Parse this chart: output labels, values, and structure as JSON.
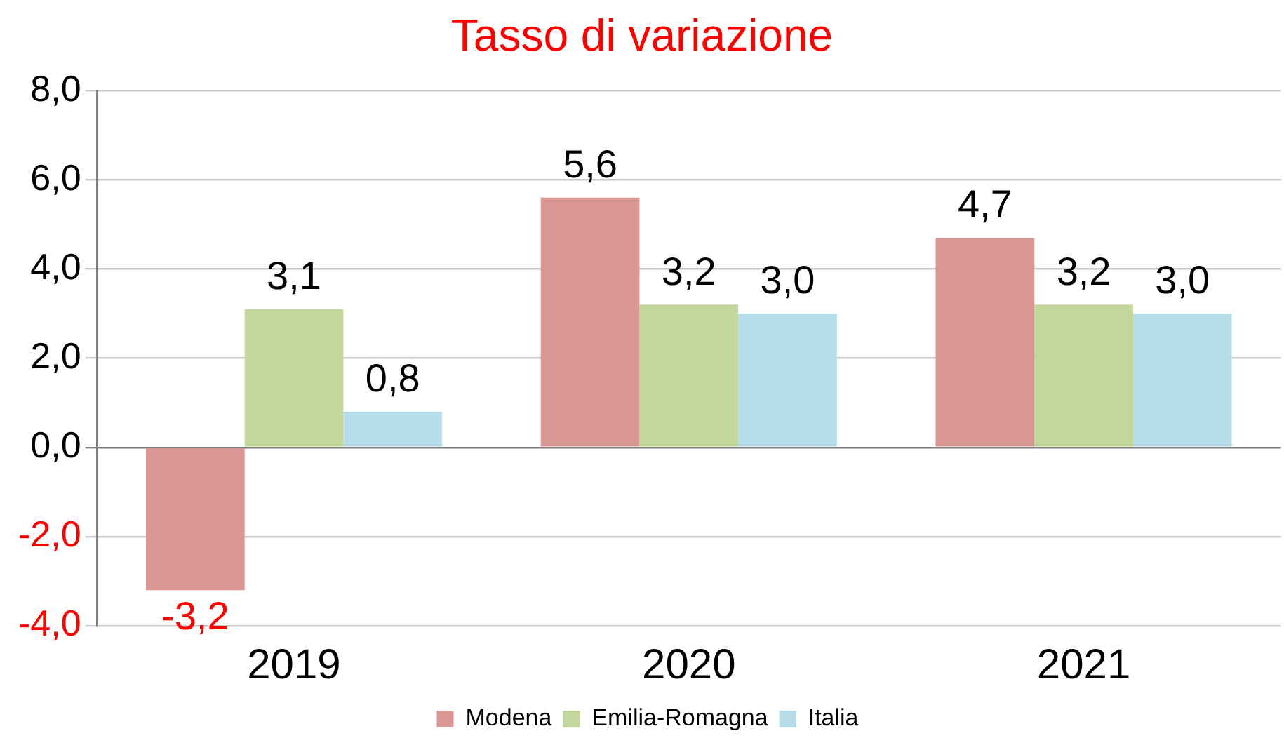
{
  "chart_data": {
    "type": "bar",
    "title": "Tasso di variazione",
    "categories": [
      "2019",
      "2020",
      "2021"
    ],
    "series": [
      {
        "name": "Modena",
        "color": "#d99694",
        "values": [
          -3.2,
          5.6,
          4.7
        ],
        "value_labels": [
          "-3,2",
          "5,6",
          "4,7"
        ]
      },
      {
        "name": "Emilia-Romagna",
        "color": "#c3d69b",
        "values": [
          3.1,
          3.2,
          3.2
        ],
        "value_labels": [
          "3,1",
          "3,2",
          "3,2"
        ]
      },
      {
        "name": "Italia",
        "color": "#b7dde8",
        "values": [
          0.8,
          3.0,
          3.0
        ],
        "value_labels": [
          "0,8",
          "3,0",
          "3,0"
        ]
      }
    ],
    "ylim": [
      -4,
      8
    ],
    "yticks": [
      {
        "value": -4,
        "label": "-4,0"
      },
      {
        "value": -2,
        "label": "-2,0"
      },
      {
        "value": 0,
        "label": "0,0"
      },
      {
        "value": 2,
        "label": "2,0"
      },
      {
        "value": 4,
        "label": "4,0"
      },
      {
        "value": 6,
        "label": "6,0"
      },
      {
        "value": 8,
        "label": "8,0"
      }
    ],
    "grid": "y",
    "legend": "bottom"
  }
}
